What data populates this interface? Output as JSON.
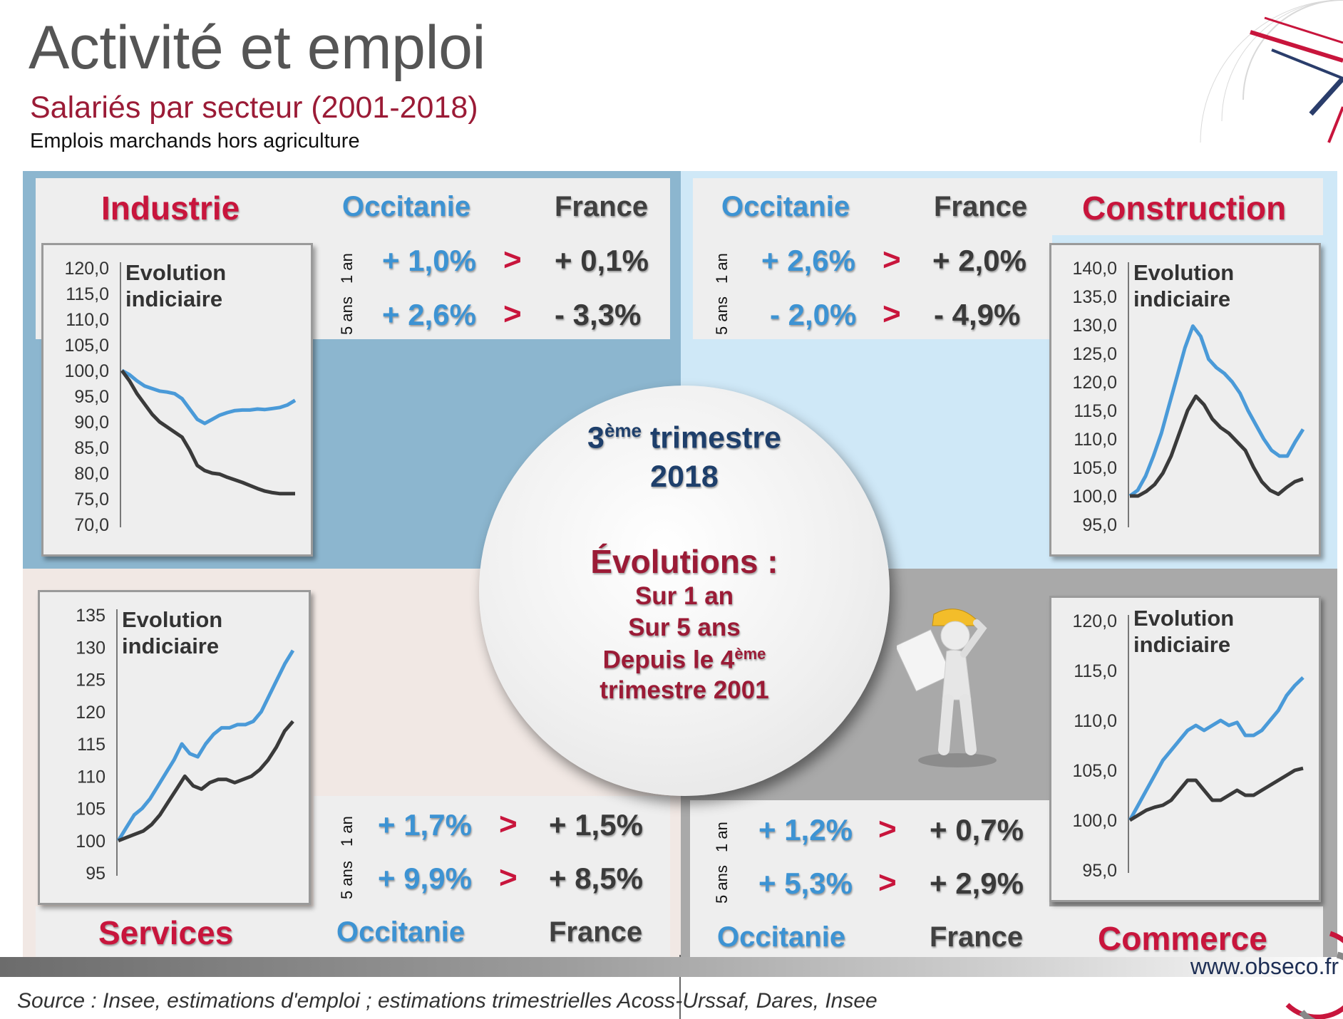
{
  "header": {
    "title": "Activité et emploi",
    "subtitle": "Salariés par secteur (2001-2018)",
    "subsubtitle": "Emplois marchands hors agriculture"
  },
  "labels": {
    "occitanie": "Occitanie",
    "france": "France",
    "gt": ">",
    "one_year": "1 an",
    "five_years": "5 ans",
    "chart_label_line1": "Evolution",
    "chart_label_line2": "indiciaire"
  },
  "sectors": {
    "industrie": {
      "name": "Industrie",
      "occ_1an": "+ 1,0%",
      "fr_1an": "+ 0,1%",
      "occ_5ans": "+ 2,6%",
      "fr_5ans": "- 3,3%"
    },
    "construction": {
      "name": "Construction",
      "occ_1an": "+ 2,6%",
      "fr_1an": "+ 2,0%",
      "occ_5ans": "- 2,0%",
      "fr_5ans": "- 4,9%"
    },
    "services": {
      "name": "Services",
      "occ_1an": "+ 1,7%",
      "fr_1an": "+ 1,5%",
      "occ_5ans": "+ 9,9%",
      "fr_5ans": "+ 8,5%"
    },
    "commerce": {
      "name": "Commerce",
      "occ_1an": "+ 1,2%",
      "fr_1an": "+ 0,7%",
      "occ_5ans": "+ 5,3%",
      "fr_5ans": "+ 2,9%"
    }
  },
  "center": {
    "quarter_num": "3",
    "quarter_sup": "ème",
    "quarter_word": "trimestre",
    "year": "2018",
    "evolutions": "Évolutions :",
    "line1": "Sur 1 an",
    "line2": "Sur 5 ans",
    "line3_pre": "Depuis le 4",
    "line3_sup": "ème",
    "line4": "trimestre 2001"
  },
  "footer": {
    "source": "Source : Insee, estimations d'emploi ; estimations trimestrielles Acoss-Urssaf, Dares, Insee",
    "url": "www.obseco.fr"
  },
  "colors": {
    "occitanie_series": "#4a9ad8",
    "france_series": "#3a3a3a"
  },
  "chart_data": [
    {
      "type": "line",
      "title": "Industrie",
      "ylabel": "Evolution indiciaire",
      "ylim": [
        70,
        120
      ],
      "ytick_values": [
        70,
        75,
        80,
        85,
        90,
        95,
        100,
        105,
        110,
        115,
        120
      ],
      "yticks": [
        "70,0",
        "75,0",
        "80,0",
        "85,0",
        "90,0",
        "95,0",
        "100,0",
        "105,0",
        "110,0",
        "115,0",
        "120,0"
      ],
      "x_start": "2001 T4",
      "x_end": "2018 T3",
      "series": [
        {
          "name": "Occitanie",
          "values": [
            100,
            99.2,
            98,
            97,
            96.5,
            96,
            95.8,
            95.5,
            94.5,
            92.5,
            90.5,
            89.7,
            90.5,
            91.3,
            91.8,
            92.2,
            92.3,
            92.3,
            92.5,
            92.4,
            92.6,
            92.8,
            93.3,
            94.2
          ]
        },
        {
          "name": "France",
          "values": [
            100,
            98,
            95.5,
            93.5,
            91.5,
            90,
            89,
            88,
            87,
            84.5,
            81.5,
            80.5,
            80,
            79.8,
            79.2,
            78.7,
            78.2,
            77.6,
            77,
            76.5,
            76.2,
            76,
            76,
            76
          ]
        }
      ]
    },
    {
      "type": "line",
      "title": "Construction",
      "ylabel": "Evolution indiciaire",
      "ylim": [
        95,
        140
      ],
      "ytick_values": [
        95,
        100,
        105,
        110,
        115,
        120,
        125,
        130,
        135,
        140
      ],
      "yticks": [
        "95,0",
        "100,0",
        "105,0",
        "110,0",
        "115,0",
        "120,0",
        "125,0",
        "130,0",
        "135,0",
        "140,0"
      ],
      "x_start": "2001 T4",
      "x_end": "2018 T3",
      "series": [
        {
          "name": "Occitanie",
          "values": [
            100,
            101,
            103.5,
            107,
            111,
            116,
            121,
            126,
            129.8,
            128,
            124,
            122.5,
            121.5,
            120,
            118,
            115,
            112.5,
            110,
            108,
            107,
            107,
            109.5,
            111.7
          ]
        },
        {
          "name": "France",
          "values": [
            100,
            100,
            100.8,
            102,
            104,
            107,
            111,
            115,
            117.5,
            116,
            113.5,
            112,
            111,
            109.5,
            108,
            105,
            102.5,
            101,
            100.3,
            101.5,
            102.5,
            103
          ]
        }
      ]
    },
    {
      "type": "line",
      "title": "Services",
      "ylabel": "Evolution indiciaire",
      "ylim": [
        95,
        135
      ],
      "ytick_values": [
        95,
        100,
        105,
        110,
        115,
        120,
        125,
        130,
        135
      ],
      "yticks": [
        "95",
        "100",
        "105",
        "110",
        "115",
        "120",
        "125",
        "130",
        "135"
      ],
      "x_start": "2001 T4",
      "x_end": "2018 T3",
      "series": [
        {
          "name": "Occitanie",
          "values": [
            100,
            102,
            104,
            105,
            106.5,
            108.5,
            110.5,
            112.5,
            115,
            113.5,
            113,
            115,
            116.5,
            117.5,
            117.5,
            118,
            118,
            118.5,
            120,
            122.5,
            125,
            127.5,
            129.5
          ]
        },
        {
          "name": "France",
          "values": [
            100,
            100.5,
            101,
            101.5,
            102.5,
            104,
            106,
            108,
            110,
            108.5,
            108,
            109,
            109.5,
            109.5,
            109,
            109.5,
            110,
            111,
            112.5,
            114.5,
            117,
            118.5
          ]
        }
      ]
    },
    {
      "type": "line",
      "title": "Commerce",
      "ylabel": "Evolution indiciaire",
      "ylim": [
        95,
        120
      ],
      "ytick_values": [
        95,
        100,
        105,
        110,
        115,
        120
      ],
      "yticks": [
        "95,0",
        "100,0",
        "105,0",
        "110,0",
        "115,0",
        "120,0"
      ],
      "x_start": "2001 T4",
      "x_end": "2018 T3",
      "series": [
        {
          "name": "Occitanie",
          "values": [
            100,
            101.5,
            103,
            104.5,
            106,
            107,
            108,
            109,
            109.5,
            109,
            109.5,
            110,
            109.5,
            109.8,
            108.5,
            108.5,
            109,
            110,
            111,
            112.5,
            113.5,
            114.3
          ]
        },
        {
          "name": "France",
          "values": [
            100,
            100.5,
            101,
            101.3,
            101.5,
            102,
            103,
            104,
            104,
            103,
            102,
            102,
            102.5,
            103,
            102.5,
            102.5,
            103,
            103.5,
            104,
            104.5,
            105,
            105.2
          ]
        }
      ]
    }
  ]
}
